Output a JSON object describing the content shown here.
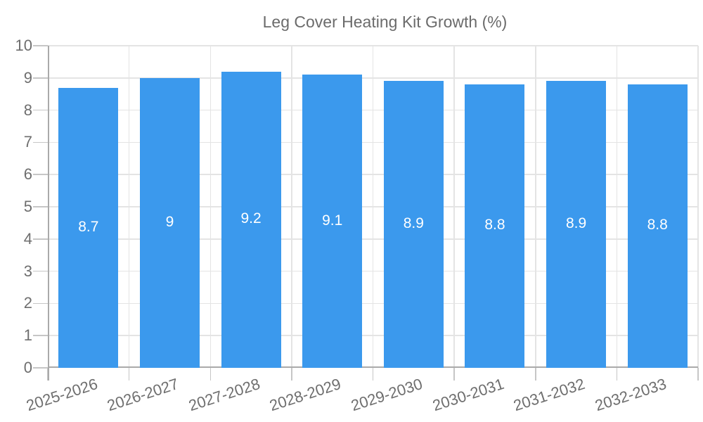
{
  "chart_data": {
    "type": "bar",
    "title": "Leg Cover Heating Kit Growth (%)",
    "legend": {
      "position": "top",
      "entries": [
        "Leg Cover Heating Kit Growth (%)"
      ]
    },
    "categories": [
      "2025-2026",
      "2026-2027",
      "2027-2028",
      "2028-2029",
      "2029-2030",
      "2030-2031",
      "2031-2032",
      "2032-2033"
    ],
    "values": [
      8.7,
      9,
      9.2,
      9.1,
      8.9,
      8.8,
      8.9,
      8.8
    ],
    "bar_labels": [
      "8.7",
      "9",
      "9.2",
      "9.1",
      "8.9",
      "8.8",
      "8.9",
      "8.8"
    ],
    "xlabel": "",
    "ylabel": "",
    "ylim": [
      0,
      10
    ],
    "yticks": [
      0,
      1,
      2,
      3,
      4,
      5,
      6,
      7,
      8,
      9,
      10
    ],
    "grid": true,
    "x_tick_rotation_deg": -18,
    "colors": {
      "bar": "#3B99ED",
      "grid_line": "#E4E4E4",
      "tick_line": "#C6C6C6",
      "axis_line": "#AAAAAA",
      "axis_text": "#6E6E6E",
      "legend_text": "#6B6B6B",
      "bar_label_text": "#FFFFFF",
      "background": "#FFFFFF"
    }
  }
}
